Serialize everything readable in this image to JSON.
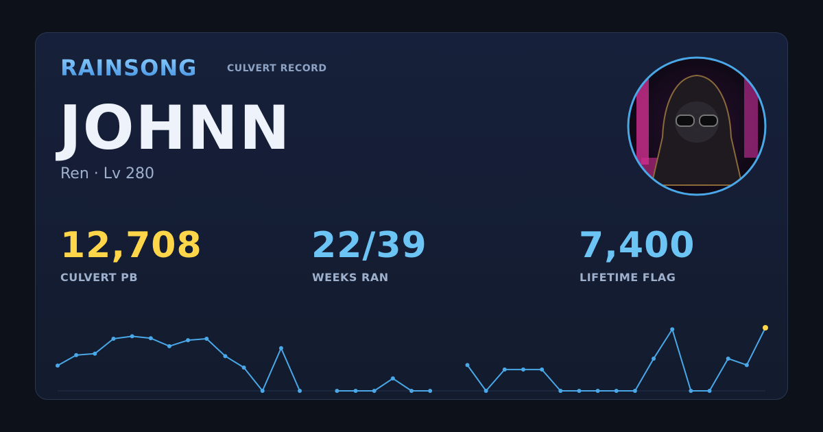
{
  "header": {
    "brand": "RAINSONG",
    "tag": "CULVERT RECORD",
    "name": "JOHNN",
    "subtitle": "Ren · Lv 280"
  },
  "stats": [
    {
      "value": "12,708",
      "label": "CULVERT PB",
      "color": "#ffd54a"
    },
    {
      "value": "22/39",
      "label": "WEEKS RAN",
      "color": "#6cc4f5"
    },
    {
      "value": "7,400",
      "label": "LIFETIME FLAG",
      "color": "#6cc4f5"
    }
  ],
  "chart_data": {
    "type": "line",
    "color": "#4aa8e8",
    "highlight_color": "#ffd54a",
    "values": [
      5100,
      7200,
      7500,
      10500,
      11000,
      10600,
      9000,
      10200,
      10500,
      7000,
      4700,
      0,
      8600,
      0,
      null,
      0,
      0,
      0,
      2500,
      0,
      0,
      null,
      5200,
      0,
      4300,
      4300,
      4300,
      0,
      0,
      0,
      0,
      0,
      6500,
      12400,
      0,
      0,
      6500,
      5200,
      12708
    ],
    "ylim": [
      0,
      12708
    ]
  }
}
